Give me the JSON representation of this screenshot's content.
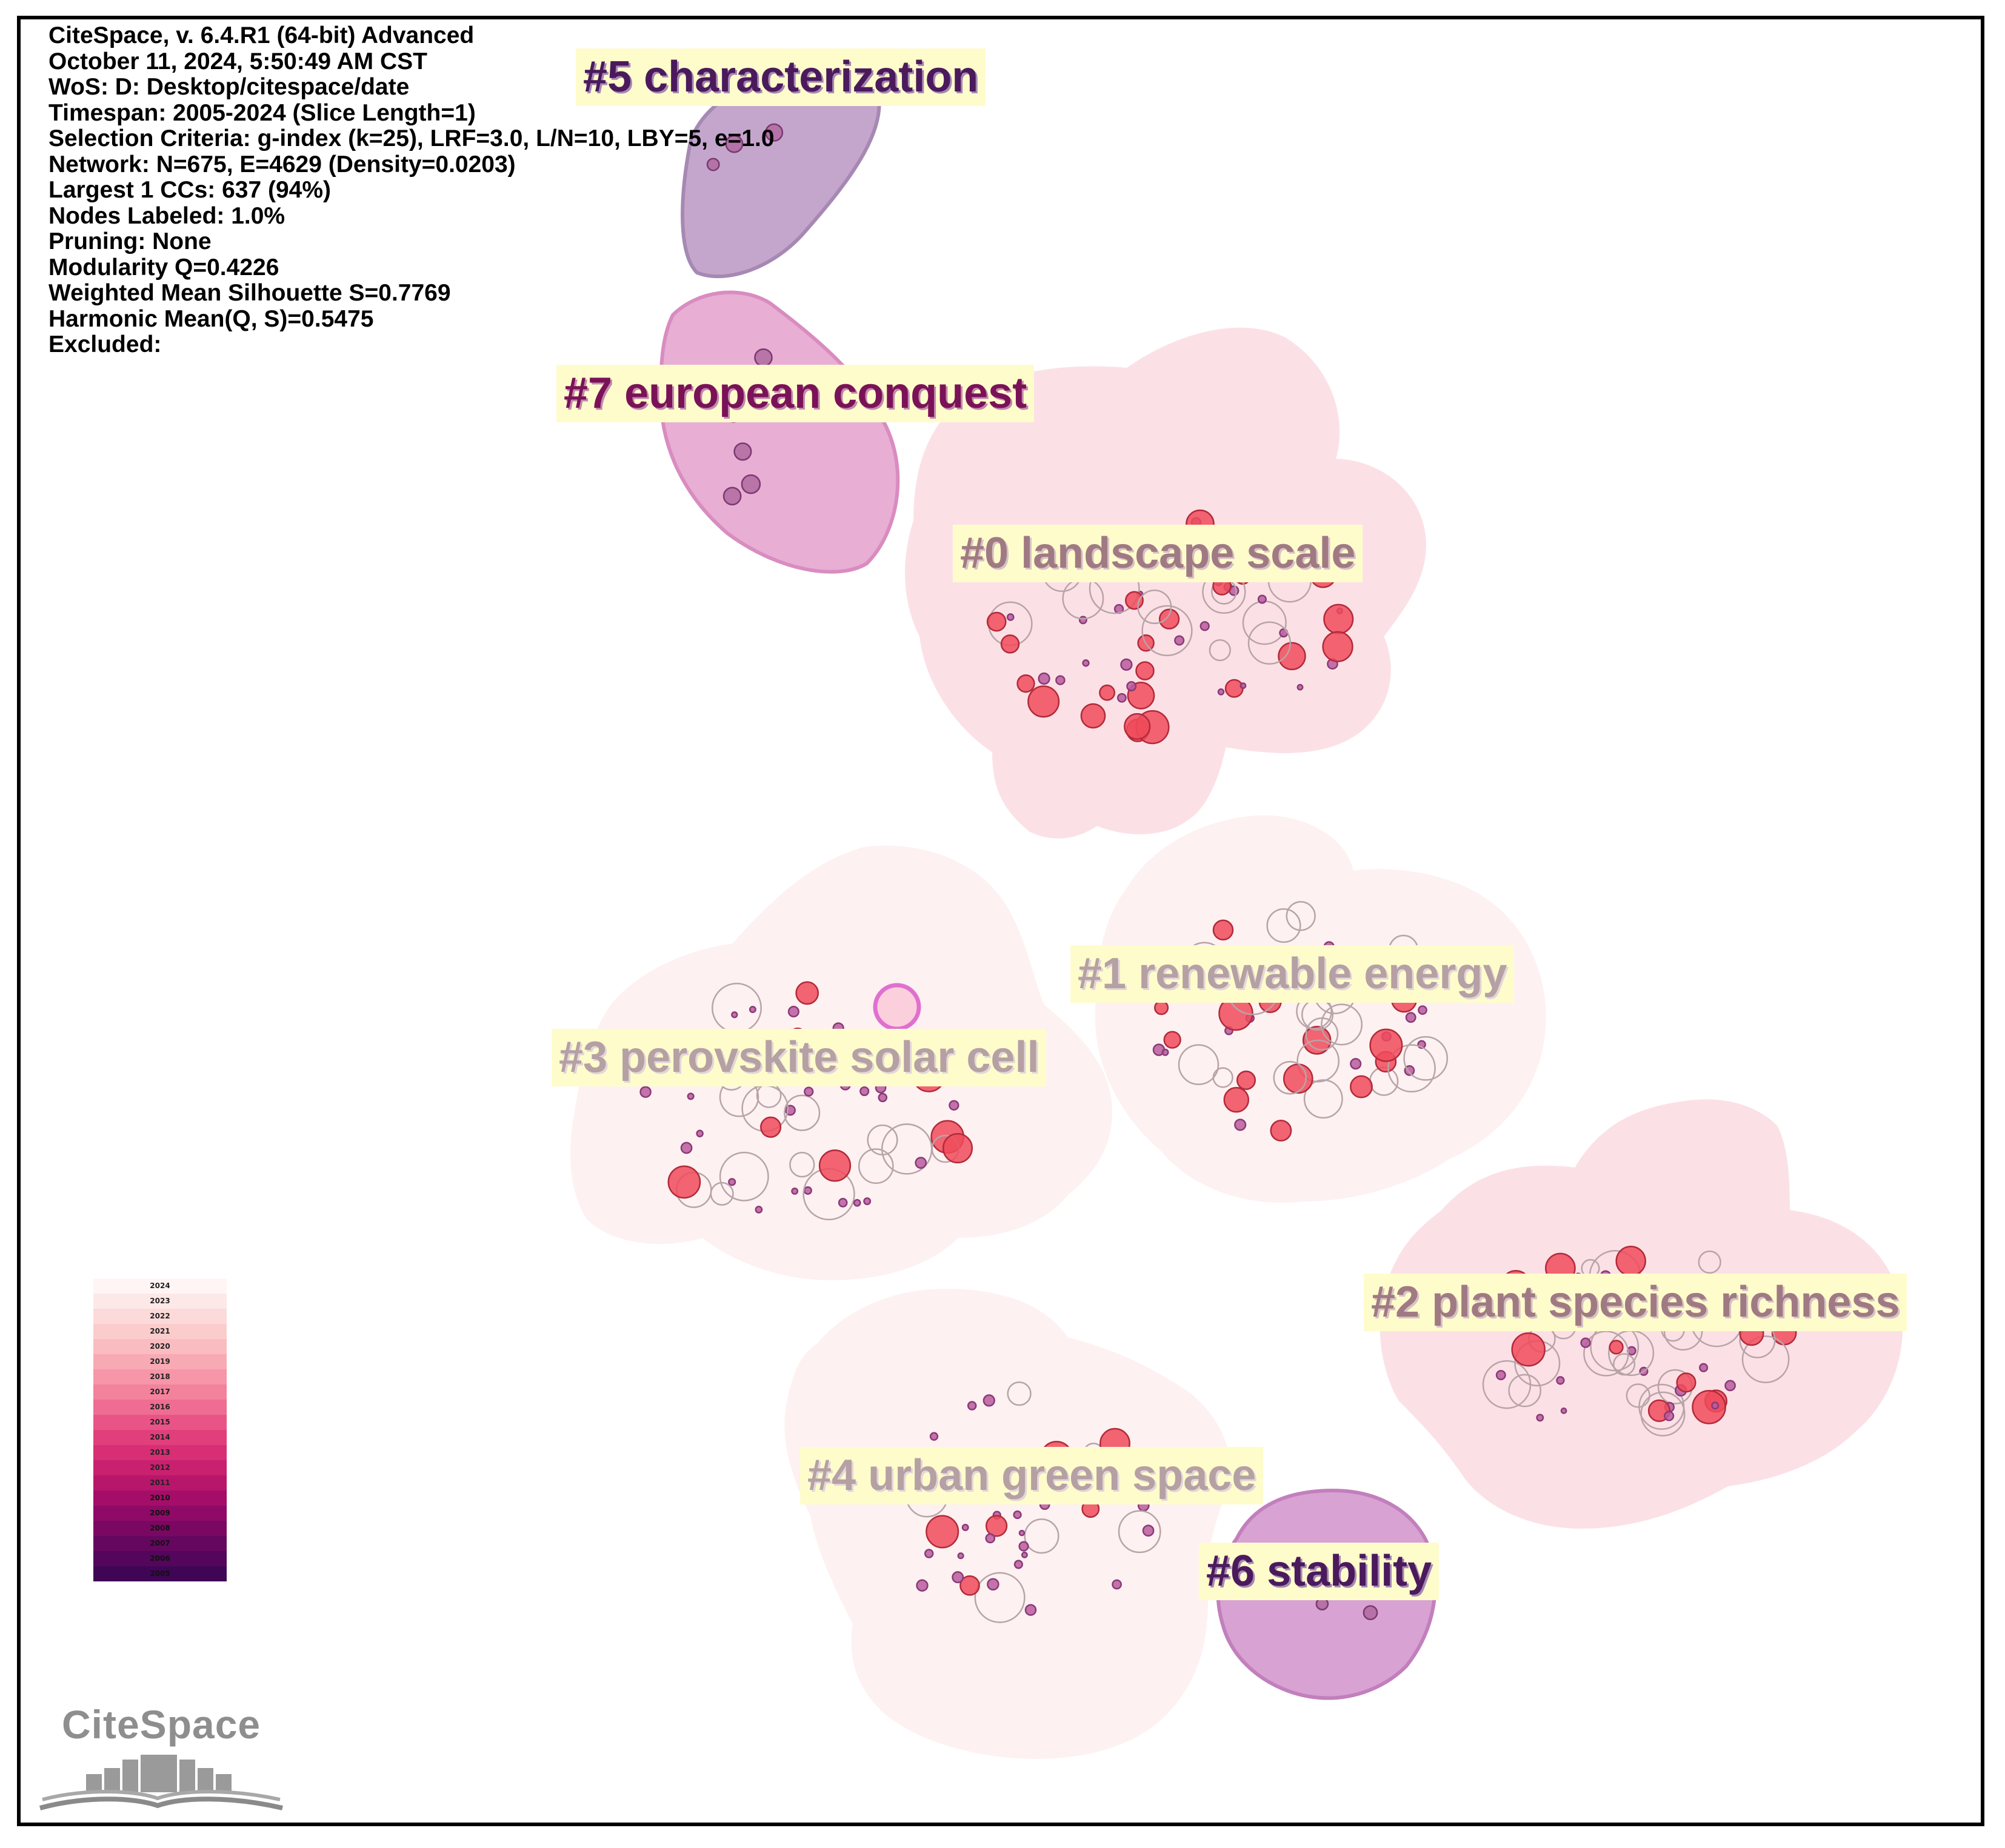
{
  "header": {
    "lines": [
      "CiteSpace, v. 6.4.R1 (64-bit) Advanced",
      "October 11, 2024, 5:50:49 AM CST",
      "WoS: D: Desktop/citespace/date",
      "Timespan: 2005-2024 (Slice Length=1)",
      "Selection Criteria: g-index (k=25), LRF=3.0, L/N=10, LBY=5, e=1.0",
      "Network: N=675, E=4629 (Density=0.0203)",
      "Largest 1 CCs: 637 (94%)",
      "Nodes Labeled: 1.0%",
      "Pruning: None",
      "Modularity Q=0.4226",
      "Weighted Mean Silhouette S=0.7769",
      "Harmonic Mean(Q, S)=0.5475",
      "Excluded:"
    ]
  },
  "clusters": [
    {
      "id": "c5",
      "label": "#5 characterization",
      "fill": "#c4a6cc",
      "stroke": "#a689b3",
      "tone": "dark"
    },
    {
      "id": "c7",
      "label": "#7 european conquest",
      "fill": "#e8aed4",
      "stroke": "#d98cc0",
      "tone": "plum"
    },
    {
      "id": "c0",
      "label": "#0 landscape scale",
      "fill": "#fbe1e6",
      "stroke": "#fbe1e6",
      "tone": "mauve"
    },
    {
      "id": "c1",
      "label": "#1 renewable energy",
      "fill": "#fdf1f1",
      "stroke": "#fdf1f1",
      "tone": "grey"
    },
    {
      "id": "c3",
      "label": "#3 perovskite solar cell",
      "fill": "#fdf1f1",
      "stroke": "#fdf1f1",
      "tone": "grey"
    },
    {
      "id": "c2",
      "label": "#2 plant species richness",
      "fill": "#fbe1e6",
      "stroke": "#fbe1e6",
      "tone": "mauve"
    },
    {
      "id": "c4",
      "label": "#4 urban green space",
      "fill": "#fdf1f1",
      "stroke": "#fdf1f1",
      "tone": "grey"
    },
    {
      "id": "c6",
      "label": "#6 stability",
      "fill": "#d8a2d2",
      "stroke": "#c27fbd",
      "tone": "dark"
    }
  ],
  "legend": {
    "years": [
      "2024",
      "2023",
      "2022",
      "2021",
      "2020",
      "2019",
      "2018",
      "2017",
      "2016",
      "2015",
      "2014",
      "2013",
      "2012",
      "2011",
      "2010",
      "2009",
      "2008",
      "2007",
      "2006",
      "2005"
    ],
    "colors": [
      "#fff5f5",
      "#fde8e8",
      "#fcdada",
      "#fbcccc",
      "#fabcc0",
      "#f8aab4",
      "#f696a8",
      "#f3829c",
      "#ef6c92",
      "#e95486",
      "#e13f7c",
      "#d72e75",
      "#c9206f",
      "#b8166b",
      "#a40e68",
      "#8e0a66",
      "#7a0863",
      "#66075f",
      "#53065b",
      "#400656"
    ]
  },
  "logo": {
    "text": "CiteSpace"
  }
}
